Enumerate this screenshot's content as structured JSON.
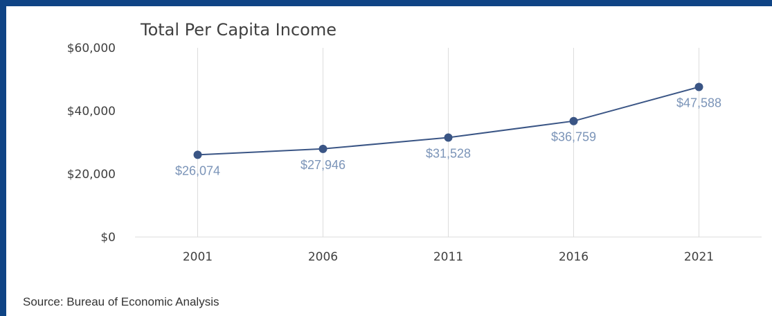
{
  "colors": {
    "frame": "#0f4485",
    "line": "#3a5585",
    "marker": "#3a5585",
    "data_label": "#7b94b8",
    "grid": "#dcdcdc",
    "text": "#404040"
  },
  "source": "Source: Bureau of Economic Analysis",
  "chart_data": {
    "type": "line",
    "title": "Total Per Capita Income",
    "xlabel": "",
    "ylabel": "",
    "categories": [
      "2001",
      "2006",
      "2011",
      "2016",
      "2021"
    ],
    "series": [
      {
        "values": [
          26074,
          27946,
          31528,
          36759,
          47588
        ],
        "data_labels": [
          "$26,074",
          "$27,946",
          "$31,528",
          "$36,759",
          "$47,588"
        ]
      }
    ],
    "ylim": [
      0,
      60000
    ],
    "yticks": [
      0,
      20000,
      40000,
      60000
    ],
    "ytick_labels": [
      "$0",
      "$20,000",
      "$40,000",
      "$60,000"
    ],
    "grid": "vertical",
    "legend": "none"
  }
}
